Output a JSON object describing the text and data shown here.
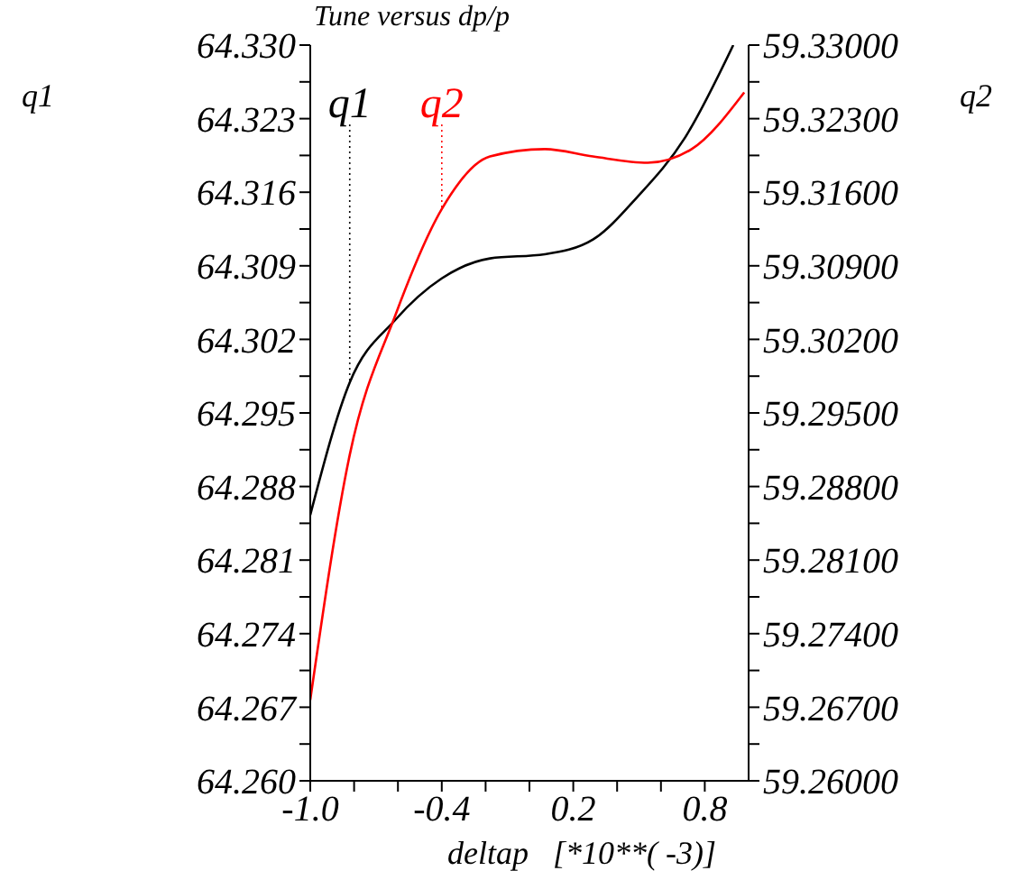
{
  "chart_data": {
    "type": "line",
    "title": "Tune versus dp/p",
    "xlabel": "deltap   [*10**( -3)]",
    "ylabel": "q1",
    "y2label": "q2",
    "xlim": [
      -1.0,
      1.0
    ],
    "xticks": [
      {
        "value": -1.0,
        "label": "-1.0"
      },
      {
        "value": -0.8,
        "label": null
      },
      {
        "value": -0.6,
        "label": null
      },
      {
        "value": -0.4,
        "label": "-0.4"
      },
      {
        "value": -0.2,
        "label": null
      },
      {
        "value": 0,
        "label": null
      },
      {
        "value": 0.2,
        "label": "0.2"
      },
      {
        "value": 0.4,
        "label": null
      },
      {
        "value": 0.6,
        "label": null
      },
      {
        "value": 0.8,
        "label": "0.8"
      }
    ],
    "ylim": [
      64.26,
      64.33
    ],
    "yticks": [
      {
        "value": 64.26,
        "label": "64.260"
      },
      {
        "value": 64.2635,
        "label": null
      },
      {
        "value": 64.267,
        "label": "64.267"
      },
      {
        "value": 64.2705,
        "label": null
      },
      {
        "value": 64.274,
        "label": "64.274"
      },
      {
        "value": 64.2775,
        "label": null
      },
      {
        "value": 64.281,
        "label": "64.281"
      },
      {
        "value": 64.2845,
        "label": null
      },
      {
        "value": 64.288,
        "label": "64.288"
      },
      {
        "value": 64.2915,
        "label": null
      },
      {
        "value": 64.295,
        "label": "64.295"
      },
      {
        "value": 64.2985,
        "label": null
      },
      {
        "value": 64.302,
        "label": "64.302"
      },
      {
        "value": 64.3055,
        "label": null
      },
      {
        "value": 64.309,
        "label": "64.309"
      },
      {
        "value": 64.3125,
        "label": null
      },
      {
        "value": 64.316,
        "label": "64.316"
      },
      {
        "value": 64.3195,
        "label": null
      },
      {
        "value": 64.323,
        "label": "64.323"
      },
      {
        "value": 64.3265,
        "label": null
      },
      {
        "value": 64.33,
        "label": "64.330"
      }
    ],
    "y2lim": [
      59.26,
      59.33
    ],
    "y2ticks": [
      {
        "value": 59.26,
        "label": "59.26000"
      },
      {
        "value": 59.2635,
        "label": null
      },
      {
        "value": 59.267,
        "label": "59.26700"
      },
      {
        "value": 59.2705,
        "label": null
      },
      {
        "value": 59.274,
        "label": "59.27400"
      },
      {
        "value": 59.2775,
        "label": null
      },
      {
        "value": 59.281,
        "label": "59.28100"
      },
      {
        "value": 59.2845,
        "label": null
      },
      {
        "value": 59.288,
        "label": "59.28800"
      },
      {
        "value": 59.2915,
        "label": null
      },
      {
        "value": 59.295,
        "label": "59.29500"
      },
      {
        "value": 59.2985,
        "label": null
      },
      {
        "value": 59.302,
        "label": "59.30200"
      },
      {
        "value": 59.3055,
        "label": null
      },
      {
        "value": 59.309,
        "label": "59.30900"
      },
      {
        "value": 59.3125,
        "label": null
      },
      {
        "value": 59.316,
        "label": "59.31600"
      },
      {
        "value": 59.3195,
        "label": null
      },
      {
        "value": 59.323,
        "label": "59.32300"
      },
      {
        "value": 59.3265,
        "label": null
      },
      {
        "value": 59.33,
        "label": "59.33000"
      }
    ],
    "marker": "none",
    "line_style": "solid",
    "series": [
      {
        "name": "q1",
        "color": "#000000",
        "x": [
          -1.0,
          -0.82,
          -0.61,
          -0.4,
          -0.18,
          0.07,
          0.29,
          0.49,
          0.71,
          0.93
        ],
        "values": [
          64.2853,
          64.2979,
          64.3039,
          64.3078,
          64.3097,
          64.3101,
          64.3115,
          64.3155,
          64.3212,
          64.33
        ]
      },
      {
        "name": "q2",
        "color": "#ff0000",
        "axis": "y2",
        "x": [
          -1.0,
          -0.82,
          -0.61,
          -0.4,
          -0.18,
          0.07,
          0.29,
          0.54,
          0.74,
          0.98
        ],
        "values": [
          59.2677,
          59.291,
          59.3044,
          59.3144,
          59.3194,
          59.3201,
          59.3194,
          59.3188,
          59.3201,
          59.3255
        ]
      }
    ]
  }
}
